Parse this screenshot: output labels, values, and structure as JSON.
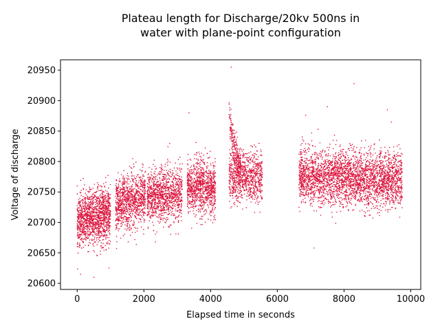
{
  "chart_data": {
    "type": "scatter",
    "title_line1": "Plateau length for Discharge/20kv 500ns in",
    "title_line2": "water with plane-point configuration",
    "xlabel": "Elapsed time in seconds",
    "ylabel": "Voltage of discharge",
    "xlim": [
      -500,
      10300
    ],
    "ylim": [
      20590,
      20967
    ],
    "xticks": [
      0,
      2000,
      4000,
      6000,
      8000,
      10000
    ],
    "yticks": [
      20600,
      20650,
      20700,
      20750,
      20800,
      20850,
      20900,
      20950
    ],
    "grid": false,
    "marker_color": "#dc143c",
    "segments": [
      {
        "x": [
          0,
          1000
        ],
        "y_center": [
          20700,
          20715
        ],
        "spread": 22,
        "count": 1400
      },
      {
        "x": [
          1150,
          2050
        ],
        "y_center": [
          20730,
          20740
        ],
        "spread": 22,
        "count": 1000
      },
      {
        "x": [
          2100,
          3150
        ],
        "y_center": [
          20740,
          20750
        ],
        "spread": 22,
        "count": 1100
      },
      {
        "x": [
          3300,
          4150
        ],
        "y_center": [
          20760,
          20755
        ],
        "spread": 22,
        "count": 1000
      },
      {
        "x": [
          4550,
          5550
        ],
        "y_center": [
          20775,
          20775
        ],
        "spread": 20,
        "count": 900
      },
      {
        "x": [
          6650,
          9750
        ],
        "y_center": [
          20775,
          20770
        ],
        "spread": 22,
        "count": 3200
      }
    ],
    "spike": {
      "x": [
        4550,
        4900
      ],
      "y_peak": 20900,
      "y_end": 20790,
      "count": 220
    },
    "outliers": [
      {
        "x": 4620,
        "y": 20955
      },
      {
        "x": 8300,
        "y": 20928
      },
      {
        "x": 3350,
        "y": 20880
      },
      {
        "x": 7500,
        "y": 20890
      },
      {
        "x": 9300,
        "y": 20885
      },
      {
        "x": 100,
        "y": 20615
      },
      {
        "x": 500,
        "y": 20610
      },
      {
        "x": 950,
        "y": 20625
      },
      {
        "x": 7100,
        "y": 20658
      },
      {
        "x": 6850,
        "y": 20876
      }
    ]
  }
}
